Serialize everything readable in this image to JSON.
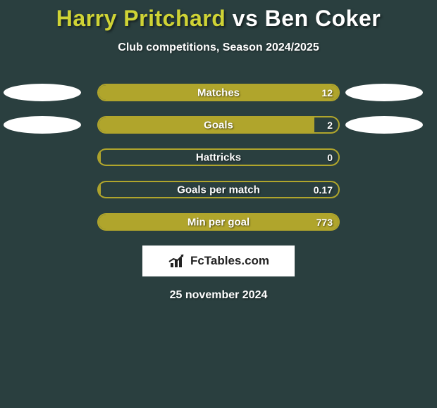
{
  "background_color": "#2a3f3f",
  "title": {
    "player1": "Harry Pritchard",
    "vs": "vs",
    "player2": "Ben Coker",
    "player1_color": "#cfd335",
    "vs_color": "#ffffff",
    "player2_color": "#ffffff",
    "fontsize": 32
  },
  "subtitle": "Club competitions, Season 2024/2025",
  "accent_color": "#b0a52c",
  "text_color": "#ffffff",
  "stats": [
    {
      "label": "Matches",
      "value": "12",
      "fill_pct": 100,
      "left_ellipse_color": "#ffffff",
      "right_ellipse_color": "#ffffff",
      "show_left_ellipse": true,
      "show_right_ellipse": true
    },
    {
      "label": "Goals",
      "value": "2",
      "fill_pct": 90,
      "left_ellipse_color": "#ffffff",
      "right_ellipse_color": "#ffffff",
      "show_left_ellipse": true,
      "show_right_ellipse": true
    },
    {
      "label": "Hattricks",
      "value": "0",
      "fill_pct": 1,
      "show_left_ellipse": false,
      "show_right_ellipse": false
    },
    {
      "label": "Goals per match",
      "value": "0.17",
      "fill_pct": 1,
      "show_left_ellipse": false,
      "show_right_ellipse": false
    },
    {
      "label": "Min per goal",
      "value": "773",
      "fill_pct": 100,
      "show_left_ellipse": false,
      "show_right_ellipse": false
    }
  ],
  "brand": "FcTables.com",
  "brand_box_bg": "#ffffff",
  "brand_text_color": "#222222",
  "date": "25 november 2024"
}
